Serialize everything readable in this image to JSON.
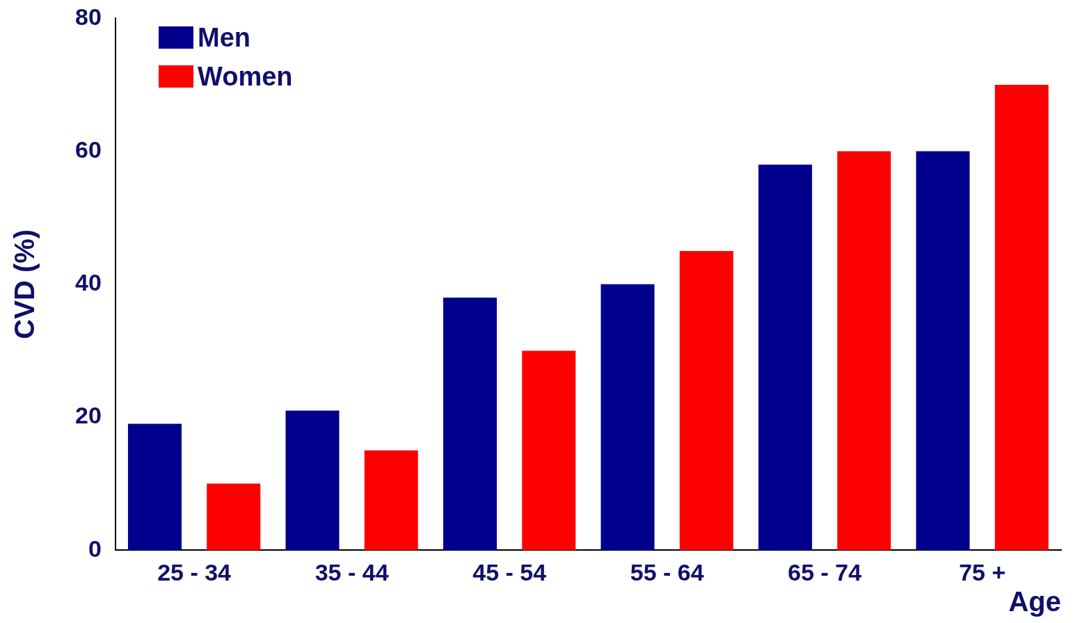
{
  "chart_data": {
    "type": "bar",
    "xlabel": "Age",
    "ylabel": "CVD (%)",
    "categories": [
      "25 - 34",
      "35 - 44",
      "45 - 54",
      "55 - 64",
      "65 - 74",
      "75 +"
    ],
    "series": [
      {
        "name": "Men",
        "color": "#00008c",
        "values": [
          19,
          21,
          38,
          40,
          58,
          60
        ]
      },
      {
        "name": "Women",
        "color": "#ff0000",
        "values": [
          10,
          15,
          30,
          45,
          60,
          70
        ]
      }
    ],
    "ylim": [
      0,
      80
    ],
    "yticks": [
      0,
      20,
      40,
      60,
      80
    ],
    "grid": false,
    "legend": "top left"
  }
}
